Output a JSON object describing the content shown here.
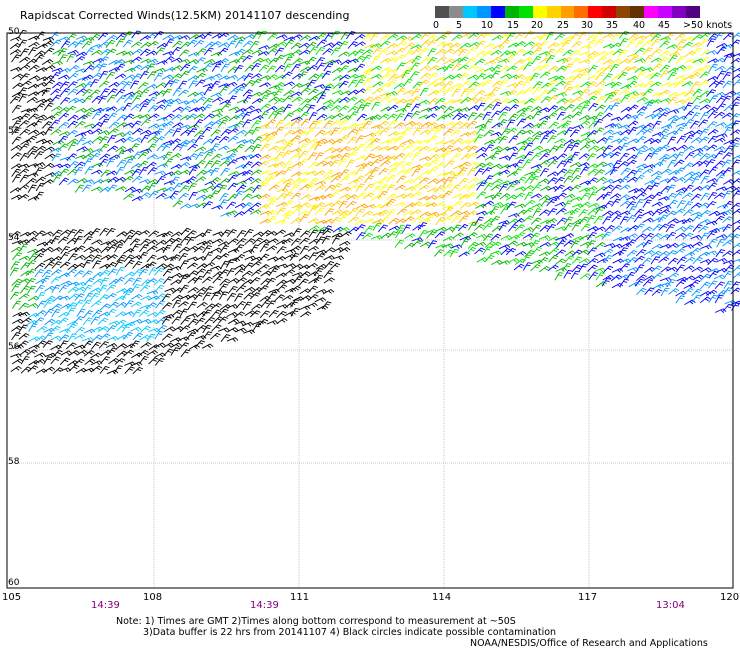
{
  "header": {
    "title": "Rapidscat Corrected Winds(12.5KM) 20141107 descending"
  },
  "legend": {
    "labels": [
      "0",
      "5",
      "10",
      "15",
      "20",
      "25",
      "30",
      "35",
      "40",
      "45",
      ">50 knots"
    ],
    "colors": [
      "#505050",
      "#8c8c8c",
      "#00c8ff",
      "#0096ff",
      "#0000ff",
      "#00b400",
      "#00e100",
      "#ffff00",
      "#ffd200",
      "#ffa000",
      "#ff6e00",
      "#ff0000",
      "#d20000",
      "#8c4600",
      "#643200",
      "#ff00ff",
      "#c800ff",
      "#8000c0",
      "#500080"
    ]
  },
  "map": {
    "x_axis": {
      "ticks": [
        "105",
        "108",
        "111",
        "114",
        "117",
        "120"
      ]
    },
    "y_axis": {
      "ticks": [
        "50",
        "52",
        "54",
        "56",
        "58",
        "60"
      ]
    },
    "times": [
      "14:39",
      "14:39",
      "13:04"
    ]
  },
  "notes": {
    "line1": "Note: 1) Times are GMT 2)Times along bottom correspond to measurement at ~50S",
    "line2": "3)Data buffer is 22 hrs from 20141107 4) Black circles indicate possible contamination"
  },
  "credit": "NOAA/NESDIS/Office of Research and Applications",
  "colors": {
    "time_label": "#800080",
    "grid": "#c8c8c8",
    "contaminated": "#000000"
  }
}
